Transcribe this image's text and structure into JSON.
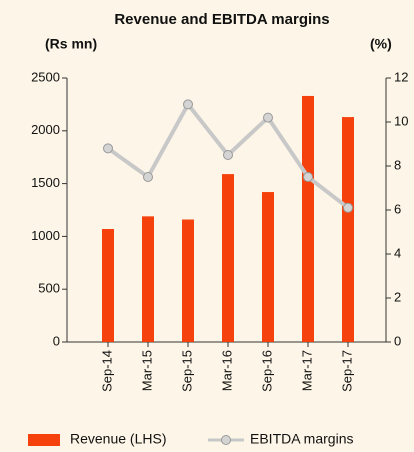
{
  "chart_data": {
    "type": "bar",
    "title": "Revenue and EBITDA margins",
    "ylabel": "(Rs mn)",
    "y2label": "(%)",
    "categories": [
      "Sep-14",
      "Mar-15",
      "Sep-15",
      "Mar-16",
      "Sep-16",
      "Mar-17",
      "Sep-17"
    ],
    "series": [
      {
        "name": "Revenue (LHS)",
        "type": "bar",
        "color": "#f5420c",
        "values": [
          1070,
          1190,
          1160,
          1590,
          1420,
          2330,
          2130
        ]
      },
      {
        "name": "EBITDA margins",
        "type": "line",
        "axis": "y2",
        "color": "#c8c8c8",
        "values": [
          8.8,
          7.5,
          10.8,
          8.5,
          10.2,
          7.5,
          6.1
        ]
      }
    ],
    "ylim": [
      0,
      2500
    ],
    "yticks": [
      0,
      500,
      1000,
      1500,
      2000,
      2500
    ],
    "y2lim": [
      0,
      12
    ],
    "y2ticks": [
      0,
      2,
      4,
      6,
      8,
      10,
      12
    ],
    "grid": false
  }
}
